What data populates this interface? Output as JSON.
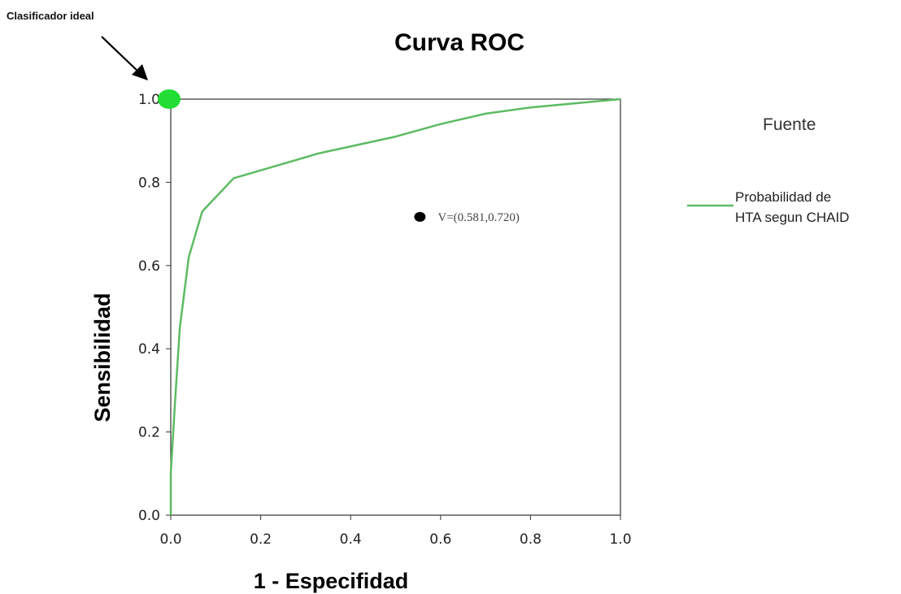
{
  "chart_data": {
    "type": "line",
    "title": "Curva ROC",
    "xlabel": "1 - Especifidad",
    "ylabel": "Sensibilidad",
    "xlim": [
      0,
      1
    ],
    "ylim": [
      0,
      1
    ],
    "x_ticks": [
      "0.0",
      "0.2",
      "0.4",
      "0.6",
      "0.8",
      "1.0"
    ],
    "y_ticks": [
      "0.0",
      "0.2",
      "0.4",
      "0.6",
      "0.8",
      "1.0"
    ],
    "grid": false,
    "legend_title": "Fuente",
    "legend_position": "right",
    "series": [
      {
        "name": "Probabilidad de HTA segun CHAID",
        "color": "#5dbb63",
        "x": [
          0.0,
          0.0,
          0.01,
          0.02,
          0.04,
          0.07,
          0.14,
          0.33,
          0.5,
          0.6,
          0.7,
          0.8,
          0.9,
          1.0
        ],
        "y": [
          0.0,
          0.1,
          0.28,
          0.45,
          0.62,
          0.73,
          0.81,
          0.87,
          0.91,
          0.94,
          0.965,
          0.98,
          0.99,
          1.0
        ]
      }
    ],
    "annotations": [
      {
        "text": "Clasificador ideal",
        "x": 0.0,
        "y": 1.0,
        "marker_color": "#22dd33"
      },
      {
        "text": "V=(0.581,0.720)",
        "x": 0.554,
        "y": 0.717,
        "marker_color": "#000000"
      }
    ],
    "legend_lines": [
      "Probabilidad de",
      "HTA segun CHAID"
    ]
  }
}
